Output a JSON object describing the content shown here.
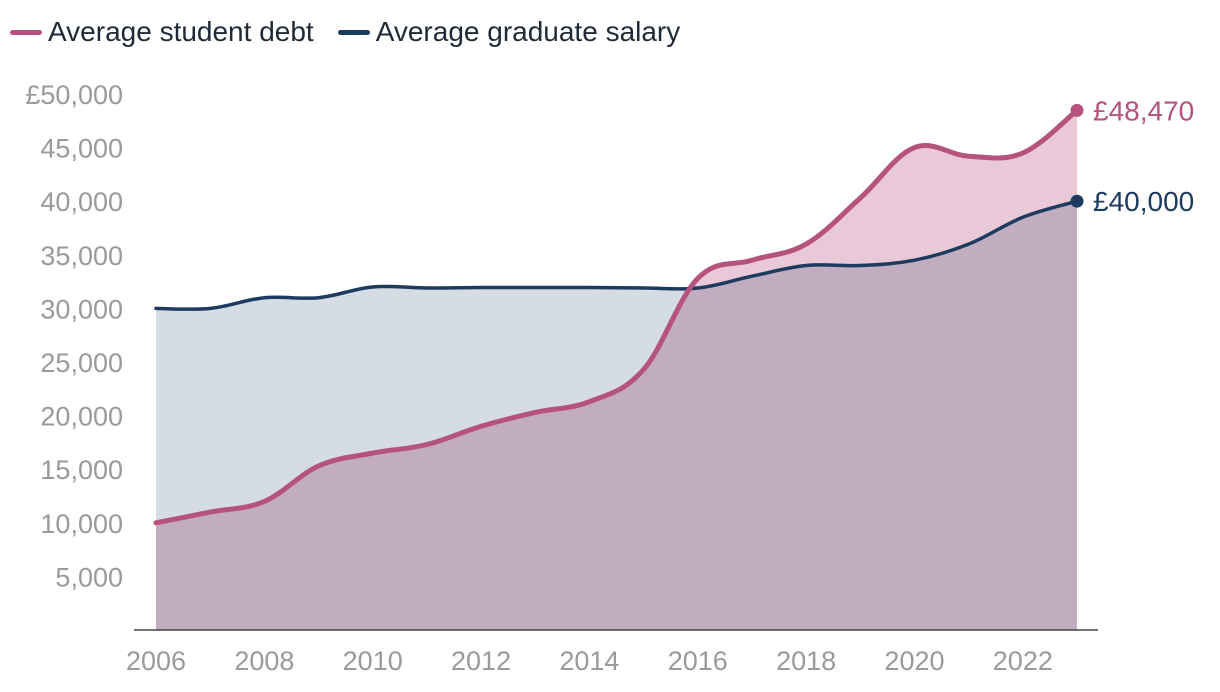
{
  "chart_data": {
    "type": "area",
    "x": [
      2006,
      2007,
      2008,
      2009,
      2010,
      2011,
      2012,
      2013,
      2014,
      2015,
      2016,
      2017,
      2018,
      2019,
      2020,
      2021,
      2022,
      2023
    ],
    "series": [
      {
        "name": "Average student debt",
        "color": "#b5527e",
        "fill": "#dba7bf",
        "values": [
          10000,
          11000,
          12000,
          15300,
          16500,
          17300,
          19000,
          20300,
          21300,
          24300,
          32800,
          34500,
          36000,
          40300,
          45000,
          44200,
          44500,
          48470
        ],
        "end_label": "£48,470"
      },
      {
        "name": "Average graduate salary",
        "color": "#1d3a5f",
        "fill": "#b3bfcd",
        "values": [
          30000,
          30000,
          31000,
          31000,
          32000,
          31900,
          31950,
          31950,
          31950,
          31900,
          31900,
          33000,
          34000,
          34000,
          34500,
          36000,
          38500,
          40000
        ],
        "end_label": "£40,000"
      }
    ],
    "y_ticks": [
      5000,
      10000,
      15000,
      20000,
      25000,
      30000,
      35000,
      40000,
      45000,
      50000
    ],
    "y_tick_labels": [
      "5,000",
      "10,000",
      "15,000",
      "20,000",
      "25,000",
      "30,000",
      "35,000",
      "40,000",
      "45,000",
      "£50,000"
    ],
    "x_ticks": [
      2006,
      2008,
      2010,
      2012,
      2014,
      2016,
      2018,
      2020,
      2022
    ],
    "x_tick_labels": [
      "2006",
      "2008",
      "2010",
      "2012",
      "2014",
      "2016",
      "2018",
      "2020",
      "2022"
    ],
    "ylim": [
      0,
      50000
    ],
    "xlim": [
      2006,
      2023
    ],
    "grid": false,
    "legend_position": "top-left",
    "title": "",
    "xlabel": "",
    "ylabel": ""
  }
}
